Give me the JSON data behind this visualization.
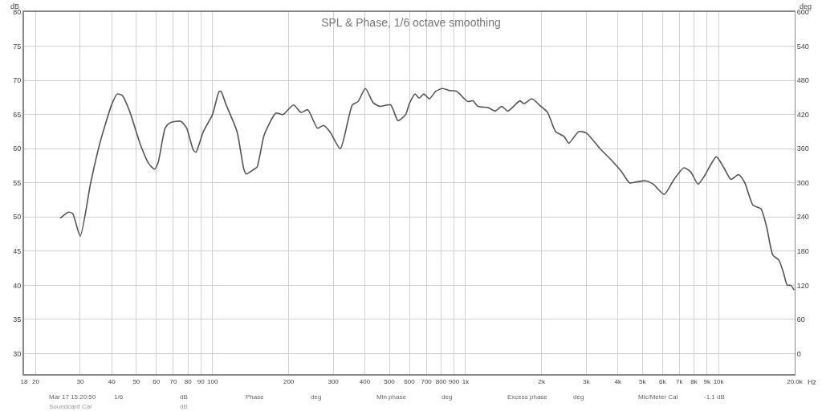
{
  "chart_data": {
    "type": "line",
    "title": "SPL & Phase, 1/6 octave smoothing",
    "xlabel": "Hz",
    "ylabel": "dB",
    "y2label": "deg",
    "log": "x",
    "grid": true,
    "line_style": "solid",
    "marker": "none",
    "xlim": [
      18,
      20000
    ],
    "xticks": [
      18,
      20,
      30,
      40,
      50,
      60,
      70,
      80,
      90,
      100,
      200,
      300,
      400,
      500,
      600,
      700,
      800,
      900,
      {
        "value": 1000,
        "label": "1k"
      },
      {
        "value": 2000,
        "label": "2k"
      },
      {
        "value": 3000,
        "label": "3k"
      },
      {
        "value": 4000,
        "label": "4k"
      },
      {
        "value": 5000,
        "label": "5k"
      },
      {
        "value": 6000,
        "label": "6k"
      },
      {
        "value": 7000,
        "label": "7k"
      },
      {
        "value": 8000,
        "label": "8k"
      },
      {
        "value": 9000,
        "label": "9k"
      },
      {
        "value": 10000,
        "label": "10k"
      },
      {
        "value": 20000,
        "label": "20.0k"
      }
    ],
    "ylim": [
      27,
      80
    ],
    "yticks": [
      30,
      35,
      40,
      45,
      50,
      55,
      60,
      65,
      70,
      75,
      80
    ],
    "y2lim": [
      -36,
      600
    ],
    "y2ticks": [
      0,
      60,
      120,
      180,
      240,
      300,
      360,
      420,
      480,
      540,
      600
    ],
    "x": [
      25,
      27,
      28,
      30,
      33,
      36,
      40,
      42,
      44,
      47,
      52,
      56,
      59,
      61,
      65,
      68,
      75,
      79,
      84,
      86,
      92,
      100,
      106,
      108,
      113,
      125,
      133,
      136,
      146,
      150,
      160,
      178,
      190,
      209,
      224,
      238,
      260,
      275,
      292,
      320,
      357,
      376,
      402,
      432,
      458,
      506,
      541,
      580,
      600,
      632,
      656,
      684,
      720,
      763,
      810,
      866,
      922,
      1020,
      1070,
      1120,
      1230,
      1310,
      1390,
      1470,
      1640,
      1700,
      1830,
      1970,
      2110,
      2270,
      2450,
      2560,
      2800,
      3000,
      3400,
      3800,
      4140,
      4450,
      4700,
      5140,
      5520,
      6100,
      6670,
      7300,
      7760,
      8300,
      8800,
      9800,
      10500,
      11200,
      12000,
      12700,
      13700,
      14700,
      15500,
      16400,
      17300,
      18000,
      18700,
      19300,
      19900
    ],
    "series": [
      {
        "color": "#555555",
        "values": [
          49.8,
          50.7,
          50.5,
          47.2,
          55,
          61,
          66.5,
          68,
          67.8,
          65.5,
          60.5,
          57.8,
          57,
          58,
          63,
          63.8,
          64,
          63,
          59.8,
          59.5,
          62.5,
          65,
          68.3,
          68.4,
          66.5,
          62.5,
          57,
          56.3,
          57,
          57.3,
          62,
          65.2,
          65,
          66.4,
          65.3,
          65.7,
          63,
          63.4,
          62.4,
          60,
          66.4,
          66.9,
          68.8,
          66.7,
          66.2,
          66.4,
          64.1,
          65,
          66.6,
          68,
          67.4,
          68,
          67.3,
          68.4,
          68.8,
          68.5,
          68.4,
          66.9,
          67,
          66.2,
          66,
          65.5,
          66.2,
          65.5,
          67,
          66.6,
          67.3,
          66.3,
          65.3,
          62.5,
          61.8,
          60.8,
          62.5,
          62.3,
          60,
          58.2,
          56.6,
          55,
          55.1,
          55.3,
          54.8,
          53.3,
          55.5,
          57.2,
          56.6,
          54.8,
          56,
          58.8,
          57.2,
          55.5,
          56.2,
          55,
          51.7,
          51.2,
          48.5,
          44.4,
          43.7,
          42,
          40,
          40,
          39.3
        ]
      }
    ],
    "annotations": [
      "Mar 17 15:20:50",
      "1/6",
      "dB",
      "Phase",
      "deg",
      "Min phase",
      "deg",
      "Excess phase",
      "deg",
      "Mic/Meter Cal",
      "-1.1 dB",
      "Soundcard Cal",
      "dB"
    ]
  }
}
